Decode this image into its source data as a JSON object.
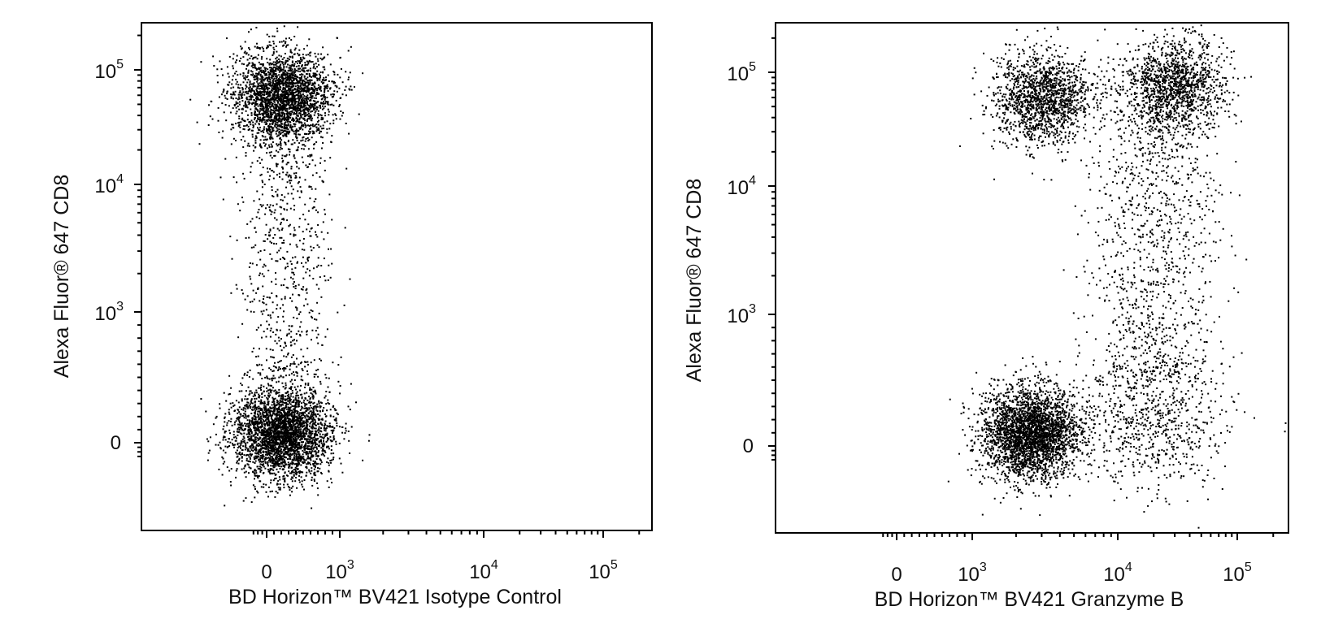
{
  "chart_data": [
    {
      "type": "scatter",
      "title": "",
      "xlabel": "BD Horizon™ BV421 Isotype Control",
      "ylabel": "Alexa Fluor® 647 CD8",
      "x_scale": "biexponential",
      "y_scale": "biexponential",
      "x_ticks": [
        {
          "base": "0"
        },
        {
          "base": "10",
          "exp": "3"
        },
        {
          "base": "10",
          "exp": "4"
        },
        {
          "base": "10",
          "exp": "5"
        }
      ],
      "y_ticks": [
        {
          "base": "0"
        },
        {
          "base": "10",
          "exp": "3"
        },
        {
          "base": "10",
          "exp": "4"
        },
        {
          "base": "10",
          "exp": "5"
        }
      ],
      "point_color": "#000000",
      "populations": [
        {
          "x_center": 200,
          "y_center": 60000,
          "approx_events": 2600
        },
        {
          "x_center": 250,
          "y_center": 3000,
          "approx_events": 700
        },
        {
          "x_center": 200,
          "y_center": 80,
          "approx_events": 3200
        }
      ]
    },
    {
      "type": "scatter",
      "title": "",
      "xlabel": "BD Horizon™ BV421 Granzyme B",
      "ylabel": "Alexa Fluor® 647 CD8",
      "x_scale": "biexponential",
      "y_scale": "biexponential",
      "x_ticks": [
        {
          "base": "0"
        },
        {
          "base": "10",
          "exp": "3"
        },
        {
          "base": "10",
          "exp": "4"
        },
        {
          "base": "10",
          "exp": "5"
        }
      ],
      "y_ticks": [
        {
          "base": "0"
        },
        {
          "base": "10",
          "exp": "3"
        },
        {
          "base": "10",
          "exp": "4"
        },
        {
          "base": "10",
          "exp": "5"
        }
      ],
      "point_color": "#000000",
      "populations": [
        {
          "x_center": 3000,
          "y_center": 60000,
          "approx_events": 1500
        },
        {
          "x_center": 30000,
          "y_center": 80000,
          "approx_events": 1200
        },
        {
          "x_center": 20000,
          "y_center": 5000,
          "approx_events": 1300
        },
        {
          "x_center": 2500,
          "y_center": 100,
          "approx_events": 3000
        },
        {
          "x_center": 20000,
          "y_center": 200,
          "approx_events": 700
        }
      ]
    }
  ]
}
